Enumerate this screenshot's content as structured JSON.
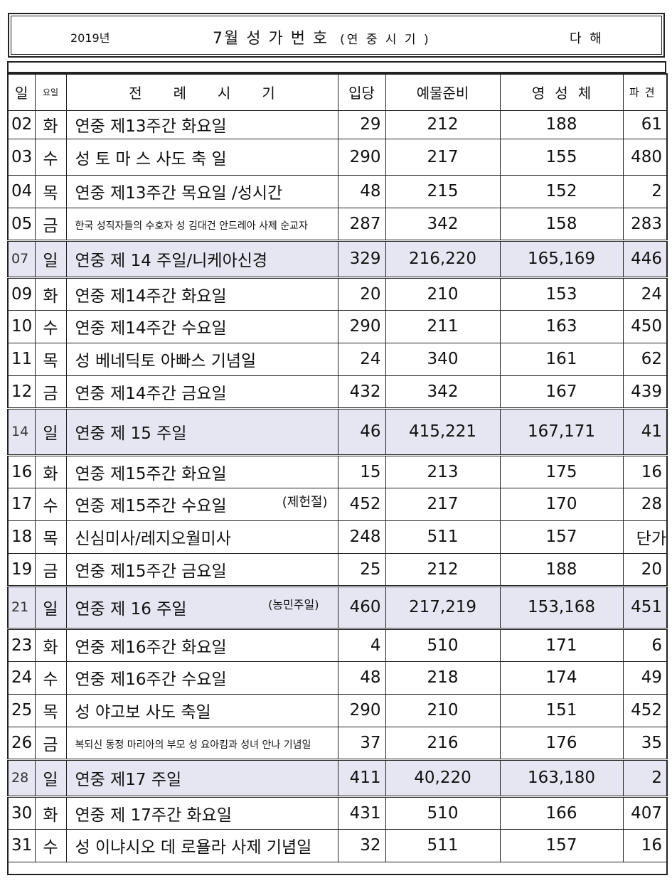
{
  "header": {
    "year": "2019년",
    "title": "7월 성 가  번 호",
    "subtitle": "(연 중 시 기 )",
    "right": "다 해"
  },
  "columns": [
    "일",
    "요일",
    "전례시기",
    "입당",
    "예물준비",
    "영성체",
    "파견"
  ],
  "rows": [
    {
      "day": "02",
      "dow": "화",
      "name": "연중  제13주간 화요일",
      "note": "",
      "entrance": "29",
      "offertory": "212",
      "communion": "188",
      "dismissal": "61"
    },
    {
      "day": "03",
      "dow": "수",
      "name": "성 토 마 스  사도 축 일",
      "note": "",
      "entrance": "290",
      "offertory": "217",
      "communion": "155",
      "dismissal": "480"
    },
    {
      "day": "04",
      "dow": "목",
      "name": "연중  제13주간 목요일 /성시간",
      "note": "",
      "entrance": "48",
      "offertory": "215",
      "communion": "152",
      "dismissal": "2"
    },
    {
      "day": "05",
      "dow": "금",
      "name": "한국 성직자들의 수호자 성 김대건 안드레아  사제 순교자",
      "note": "",
      "entrance": "287",
      "offertory": "342",
      "communion": "158",
      "dismissal": "283"
    },
    {
      "day": "07",
      "dow": "일",
      "name": "연중 제 14 주일/니케아신경",
      "note": "",
      "entrance": "329",
      "offertory": "216,220",
      "communion": "165,169",
      "dismissal": "446"
    },
    {
      "day": "09",
      "dow": "화",
      "name": "연중  제14주간 화요일",
      "note": "",
      "entrance": "20",
      "offertory": "210",
      "communion": "153",
      "dismissal": "24"
    },
    {
      "day": "10",
      "dow": "수",
      "name": "연중  제14주간 수요일",
      "note": "",
      "entrance": "290",
      "offertory": "211",
      "communion": "163",
      "dismissal": "450"
    },
    {
      "day": "11",
      "dow": "목",
      "name": "성 베네딕토 아빠스 기념일",
      "note": "",
      "entrance": "24",
      "offertory": "340",
      "communion": "161",
      "dismissal": "62"
    },
    {
      "day": "12",
      "dow": "금",
      "name": "연중  제14주간 금요일",
      "note": "",
      "entrance": "432",
      "offertory": "342",
      "communion": "167",
      "dismissal": "439"
    },
    {
      "day": "14",
      "dow": "일",
      "name": "연중 제 15 주일",
      "note": "",
      "entrance": "46",
      "offertory": "415,221",
      "communion": "167,171",
      "dismissal": "41"
    },
    {
      "day": "16",
      "dow": "화",
      "name": "연중  제15주간 화요일",
      "note": "",
      "entrance": "15",
      "offertory": "213",
      "communion": "175",
      "dismissal": "16"
    },
    {
      "day": "17",
      "dow": "수",
      "name": "연중  제15주간 수요일",
      "note": "(제헌절)",
      "entrance": "452",
      "offertory": "217",
      "communion": "170",
      "dismissal": "28"
    },
    {
      "day": "18",
      "dow": "목",
      "name": "신심미사/레지오월미사",
      "note": "",
      "entrance": "248",
      "offertory": "511",
      "communion": "157",
      "dismissal": "단가"
    },
    {
      "day": "19",
      "dow": "금",
      "name": "연중  제15주간 금요일",
      "note": "",
      "entrance": "25",
      "offertory": "212",
      "communion": "188",
      "dismissal": "20"
    },
    {
      "day": "21",
      "dow": "일",
      "name": "연중 제 16 주일",
      "note": "(농민주일)",
      "entrance": "460",
      "offertory": "217,219",
      "communion": "153,168",
      "dismissal": "451"
    },
    {
      "day": "23",
      "dow": "화",
      "name": "연중  제16주간 화요일",
      "note": "",
      "entrance": "4",
      "offertory": "510",
      "communion": "171",
      "dismissal": "6"
    },
    {
      "day": "24",
      "dow": "수",
      "name": "연중  제16주간 수요일",
      "note": "",
      "entrance": "48",
      "offertory": "218",
      "communion": "174",
      "dismissal": "49"
    },
    {
      "day": "25",
      "dow": "목",
      "name": "성 야고보 사도 축일",
      "note": "",
      "entrance": "290",
      "offertory": "210",
      "communion": "151",
      "dismissal": "452"
    },
    {
      "day": "26",
      "dow": "금",
      "name": "복되신 동정 마리아의 부모 성 요아킴과 성녀 안나 기념일",
      "note": "",
      "entrance": "37",
      "offertory": "216",
      "communion": "176",
      "dismissal": "35"
    },
    {
      "day": "28",
      "dow": "일",
      "name": "연중  제17 주일",
      "note": "",
      "entrance": "411",
      "offertory": "40,220",
      "communion": "163,180",
      "dismissal": "2"
    },
    {
      "day": "30",
      "dow": "화",
      "name": "연중 제 17주간 화요일",
      "note": "",
      "entrance": "431",
      "offertory": "510",
      "communion": "166",
      "dismissal": "407"
    },
    {
      "day": "31",
      "dow": "수",
      "name": "성 이냐시오 데 로욜라 사제 기념일",
      "note": "",
      "entrance": "32",
      "offertory": "511",
      "communion": "157",
      "dismissal": "16"
    }
  ]
}
